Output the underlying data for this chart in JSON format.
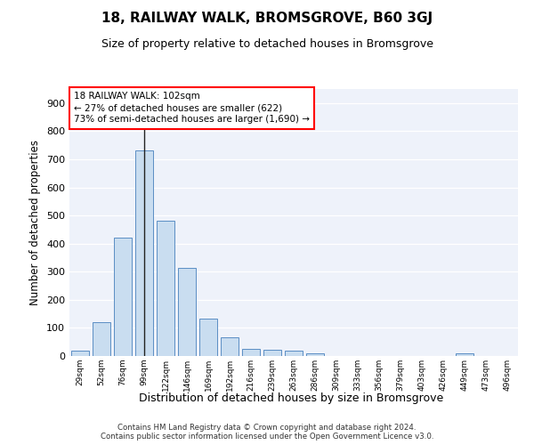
{
  "title": "18, RAILWAY WALK, BROMSGROVE, B60 3GJ",
  "subtitle": "Size of property relative to detached houses in Bromsgrove",
  "xlabel": "Distribution of detached houses by size in Bromsgrove",
  "ylabel": "Number of detached properties",
  "bar_color": "#c9ddf0",
  "bar_edge_color": "#5a8ec4",
  "bg_color": "#eef2fa",
  "grid_color": "#ffffff",
  "annotation_text": "18 RAILWAY WALK: 102sqm\n← 27% of detached houses are smaller (622)\n73% of semi-detached houses are larger (1,690) →",
  "vline_x_index": 3,
  "categories": [
    "29sqm",
    "52sqm",
    "76sqm",
    "99sqm",
    "122sqm",
    "146sqm",
    "169sqm",
    "192sqm",
    "216sqm",
    "239sqm",
    "263sqm",
    "286sqm",
    "309sqm",
    "333sqm",
    "356sqm",
    "379sqm",
    "403sqm",
    "426sqm",
    "449sqm",
    "473sqm",
    "496sqm"
  ],
  "values": [
    20,
    120,
    420,
    730,
    480,
    313,
    132,
    67,
    25,
    22,
    18,
    9,
    0,
    0,
    0,
    0,
    0,
    0,
    10,
    0,
    0
  ],
  "ylim": [
    0,
    950
  ],
  "yticks": [
    0,
    100,
    200,
    300,
    400,
    500,
    600,
    700,
    800,
    900
  ],
  "footer": "Contains HM Land Registry data © Crown copyright and database right 2024.\nContains public sector information licensed under the Open Government Licence v3.0."
}
